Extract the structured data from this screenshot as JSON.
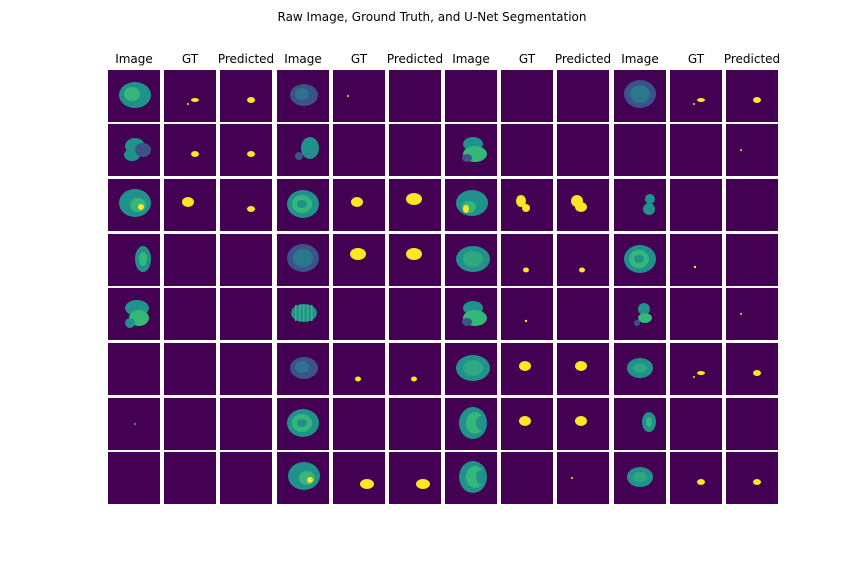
{
  "figure": {
    "title": "Raw Image, Ground Truth, and U-Net Segmentation",
    "column_headers": [
      "Image",
      "GT",
      "Predicted",
      "Image",
      "GT",
      "Predicted",
      "Image",
      "GT",
      "Predicted",
      "Image",
      "GT",
      "Predicted"
    ]
  },
  "colors": {
    "background": "#440154",
    "brain_dark": "#3b528b",
    "brain_mid": "#21918c",
    "brain_light": "#35b779",
    "mask": "#fde725"
  },
  "samples": [
    {
      "brain": "large-slightly-dim",
      "gt": "small-scattered",
      "pred": "small-blob"
    },
    {
      "brain": "medium-dim",
      "gt": "tiny-dot",
      "pred": "none"
    },
    {
      "brain": "none",
      "gt": "none",
      "pred": "none"
    },
    {
      "brain": "large-dim",
      "gt": "small-scattered",
      "pred": "small-blob"
    },
    {
      "brain": "lobed",
      "gt": "small-blob",
      "pred": "small-blob"
    },
    {
      "brain": "two-lobes-small",
      "gt": "none",
      "pred": "none"
    },
    {
      "brain": "lobed-mid",
      "gt": "none",
      "pred": "none"
    },
    {
      "brain": "none",
      "gt": "none",
      "pred": "tiny-dot"
    },
    {
      "brain": "large-with-lesion",
      "gt": "medium-blob",
      "pred": "small-blob"
    },
    {
      "brain": "large-bright",
      "gt": "medium-blob",
      "pred": "large-blob"
    },
    {
      "brain": "large-bright-lesion",
      "gt": "irregular",
      "pred": "irregular-large"
    },
    {
      "brain": "small-pair",
      "gt": "none",
      "pred": "none"
    },
    {
      "brain": "tall-narrow",
      "gt": "none",
      "pred": "none"
    },
    {
      "brain": "large-dim",
      "gt": "large-blob",
      "pred": "large-blob"
    },
    {
      "brain": "large-mid",
      "gt": "small-blob-low",
      "pred": "small-blob-low"
    },
    {
      "brain": "large-bright",
      "gt": "tiny-dot-low",
      "pred": "none"
    },
    {
      "brain": "lobed-bright",
      "gt": "none",
      "pred": "none"
    },
    {
      "brain": "striped",
      "gt": "none",
      "pred": "none"
    },
    {
      "brain": "lobed-mid",
      "gt": "tiny-dot-low",
      "pred": "none"
    },
    {
      "brain": "small-lobed",
      "gt": "none",
      "pred": "tiny-dot"
    },
    {
      "brain": "none",
      "gt": "none",
      "pred": "none"
    },
    {
      "brain": "medium-dim",
      "gt": "small-blob-low",
      "pred": "small-blob-low"
    },
    {
      "brain": "large-mid",
      "gt": "medium-blob",
      "pred": "medium-blob"
    },
    {
      "brain": "medium-mid",
      "gt": "small-scattered",
      "pred": "small-blob"
    },
    {
      "brain": "tiny-dot-brain",
      "gt": "none",
      "pred": "none"
    },
    {
      "brain": "large-bright",
      "gt": "none",
      "pred": "none"
    },
    {
      "brain": "crescent-bright",
      "gt": "medium-blob",
      "pred": "medium-blob"
    },
    {
      "brain": "small-narrow",
      "gt": "none",
      "pred": "none"
    },
    {
      "brain": "none",
      "gt": "none",
      "pred": "none"
    },
    {
      "brain": "large-with-lesion",
      "gt": "medium-blob-low",
      "pred": "medium-blob-low"
    },
    {
      "brain": "crescent-bright",
      "gt": "none",
      "pred": "tiny-dot"
    },
    {
      "brain": "medium-mid",
      "gt": "small-blob",
      "pred": "small-blob"
    }
  ]
}
